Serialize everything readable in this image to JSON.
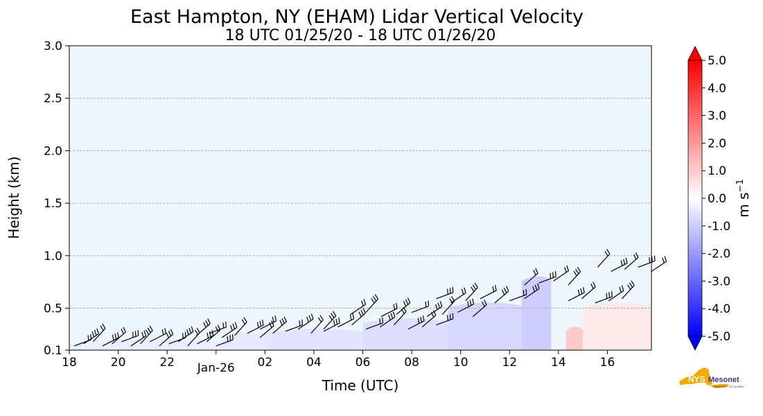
{
  "chart_data": {
    "type": "heatmap",
    "title": "East Hampton, NY (EHAM) Lidar Vertical Velocity",
    "subtitle": "18 UTC 01/25/20 - 18 UTC 01/26/20",
    "xlabel": "Time (UTC)",
    "ylabel": "Height (km)",
    "xlim": [
      18,
      41.8
    ],
    "ylim": [
      0.1,
      3.0
    ],
    "x_ticks": [
      {
        "value": 18,
        "label": "18"
      },
      {
        "value": 20,
        "label": "20"
      },
      {
        "value": 22,
        "label": "22"
      },
      {
        "value": 24,
        "label": "Jan-26"
      },
      {
        "value": 26,
        "label": "02"
      },
      {
        "value": 28,
        "label": "04"
      },
      {
        "value": 30,
        "label": "06"
      },
      {
        "value": 32,
        "label": "08"
      },
      {
        "value": 34,
        "label": "10"
      },
      {
        "value": 36,
        "label": "12"
      },
      {
        "value": 38,
        "label": "14"
      },
      {
        "value": 40,
        "label": "16"
      }
    ],
    "y_ticks": [
      {
        "value": 0.1,
        "label": "0.1"
      },
      {
        "value": 0.5,
        "label": "0.5"
      },
      {
        "value": 1.0,
        "label": "1.0"
      },
      {
        "value": 1.5,
        "label": "1.5"
      },
      {
        "value": 2.0,
        "label": "2.0"
      },
      {
        "value": 2.5,
        "label": "2.5"
      },
      {
        "value": 3.0,
        "label": "3.0"
      }
    ],
    "grid": "horizontal-dashed",
    "colorbar": {
      "label": "m s",
      "label_exponent": "−1",
      "range": [
        -5.0,
        5.0
      ],
      "ticks": [
        "5.0",
        "4.0",
        "3.0",
        "2.0",
        "1.0",
        "0.0",
        "-1.0",
        "-2.0",
        "-3.0",
        "-4.0",
        "-5.0"
      ],
      "colors": {
        "neg": "#0000ff",
        "zero": "#ffffff",
        "pos": "#ff0000"
      }
    },
    "background_value_color": "#eef6fe",
    "velocity_patches": [
      {
        "t0": 18.0,
        "t1": 24.3,
        "h_top": 0.2,
        "w": -0.4
      },
      {
        "t0": 24.3,
        "t1": 26.0,
        "h_top": 0.26,
        "w": -0.5
      },
      {
        "t0": 26.0,
        "t1": 30.0,
        "h_top": 0.3,
        "w": -0.6
      },
      {
        "t0": 30.0,
        "t1": 33.5,
        "h_top": 0.4,
        "w": -0.7
      },
      {
        "t0": 33.5,
        "t1": 36.5,
        "h_top": 0.55,
        "w": -0.9
      },
      {
        "t0": 36.5,
        "t1": 37.7,
        "h_top": 0.8,
        "w": -1.1
      },
      {
        "t0": 38.3,
        "t1": 39.0,
        "h_top": 0.32,
        "w": 1.2
      },
      {
        "t0": 39.0,
        "t1": 41.8,
        "h_top": 0.55,
        "w": 0.5
      }
    ],
    "wind_barb_groups": [
      {
        "t0": 18.2,
        "t1": 24.0,
        "h": 0.14,
        "count": 16
      },
      {
        "t0": 23.2,
        "t1": 25.8,
        "h": 0.22,
        "count": 6
      },
      {
        "t0": 25.8,
        "t1": 28.4,
        "h": 0.26,
        "count": 6
      },
      {
        "t0": 28.4,
        "t1": 33.0,
        "h": 0.3,
        "count": 9
      },
      {
        "t0": 29.5,
        "t1": 34.5,
        "h": 0.42,
        "count": 9
      },
      {
        "t0": 33.0,
        "t1": 36.6,
        "h": 0.55,
        "count": 7
      },
      {
        "t0": 36.6,
        "t1": 38.4,
        "h": 0.72,
        "count": 4
      },
      {
        "t0": 38.4,
        "t1": 40.6,
        "h": 0.55,
        "count": 5
      },
      {
        "t0": 39.6,
        "t1": 41.8,
        "h": 0.85,
        "count": 5
      }
    ]
  },
  "logo": {
    "text": "NYS",
    "name": "Mesonet",
    "sub": "UNIVERSITY AT ALBANY"
  }
}
